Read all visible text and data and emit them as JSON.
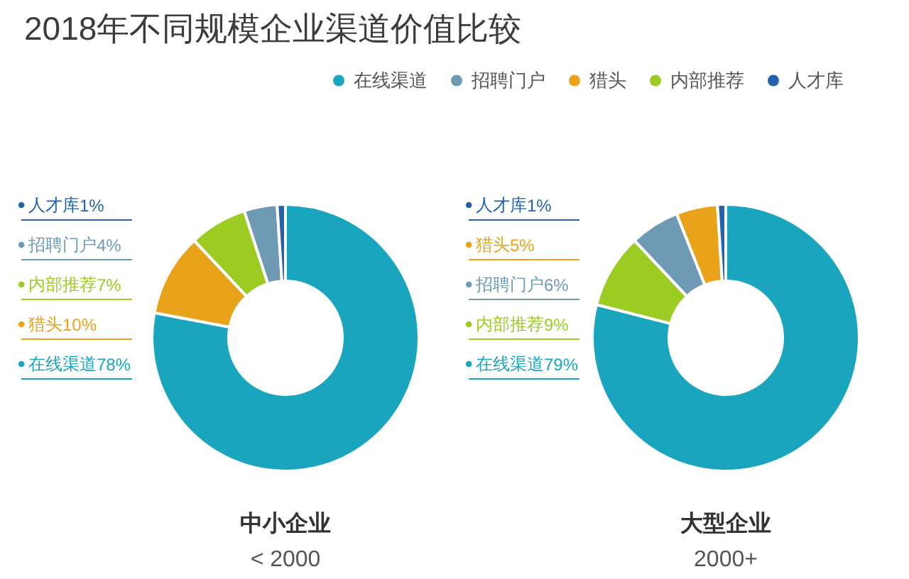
{
  "chart_data": [
    {
      "type": "donut",
      "title": "2018年不同规模企业渠道价值比较",
      "xlabel": "中小企业",
      "annotations": [
        "< 2000"
      ],
      "categories": [
        "在线渠道",
        "猎头",
        "内部推荐",
        "招聘门户",
        "人才库"
      ],
      "values": [
        78,
        10,
        7,
        4,
        1
      ],
      "colors": [
        "#1aa5be",
        "#e8a31b",
        "#9ccc21",
        "#6e9ab3",
        "#2463ab"
      ],
      "value_labels": [
        "78%",
        "10%",
        "7%",
        "4%",
        "1%"
      ],
      "legend": "left"
    },
    {
      "type": "donut",
      "xlabel": "大型企业",
      "annotations": [
        "2000+"
      ],
      "categories": [
        "在线渠道",
        "内部推荐",
        "招聘门户",
        "猎头",
        "人才库"
      ],
      "values": [
        79,
        9,
        6,
        5,
        1
      ],
      "colors": [
        "#1aa5be",
        "#9ccc21",
        "#6e9ab3",
        "#e8a31b",
        "#2463ab"
      ],
      "value_labels": [
        "79%",
        "9%",
        "6%",
        "5%",
        "1%"
      ],
      "legend": "left"
    },
    {
      "type": "other",
      "categories": [
        "在线渠道",
        "招聘门户",
        "猎头",
        "内部推荐",
        "人才库"
      ],
      "colors": [
        "#1aa5be",
        "#6e9ab3",
        "#e8a31b",
        "#9ccc21",
        "#2463ab"
      ]
    }
  ]
}
